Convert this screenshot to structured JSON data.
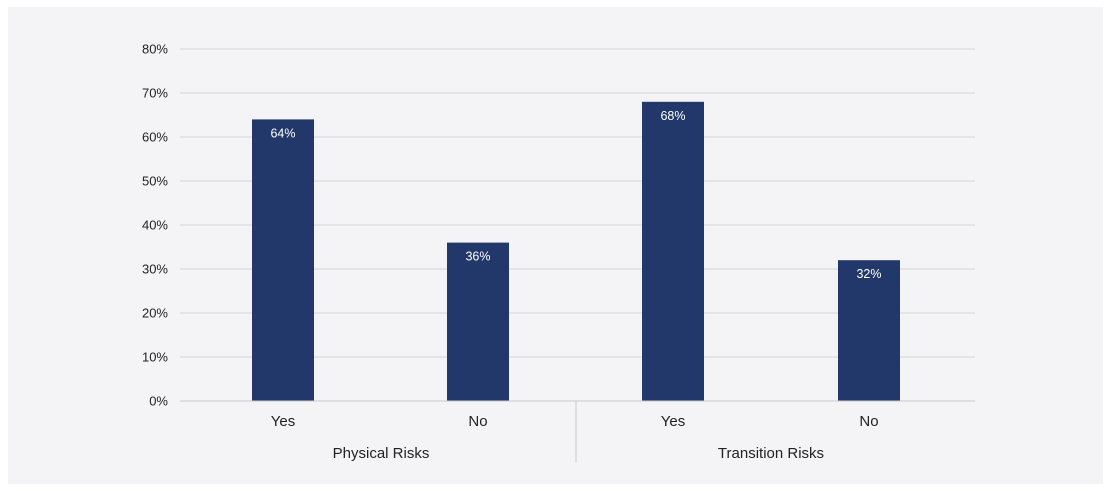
{
  "chart_data": {
    "type": "bar",
    "groups": [
      {
        "name": "Physical Risks",
        "categories": [
          "Yes",
          "No"
        ],
        "values": [
          64,
          36
        ]
      },
      {
        "name": "Transition Risks",
        "categories": [
          "Yes",
          "No"
        ],
        "values": [
          68,
          32
        ]
      }
    ],
    "data_labels": [
      "64%",
      "36%",
      "68%",
      "32%"
    ],
    "y_ticks": [
      "0%",
      "10%",
      "20%",
      "30%",
      "40%",
      "50%",
      "60%",
      "70%",
      "80%"
    ],
    "ylim": [
      0,
      80
    ],
    "y_unit": "%",
    "grid": true,
    "legend": "none",
    "bar_color": "#22386a",
    "title": "",
    "xlabel": "",
    "ylabel": ""
  }
}
